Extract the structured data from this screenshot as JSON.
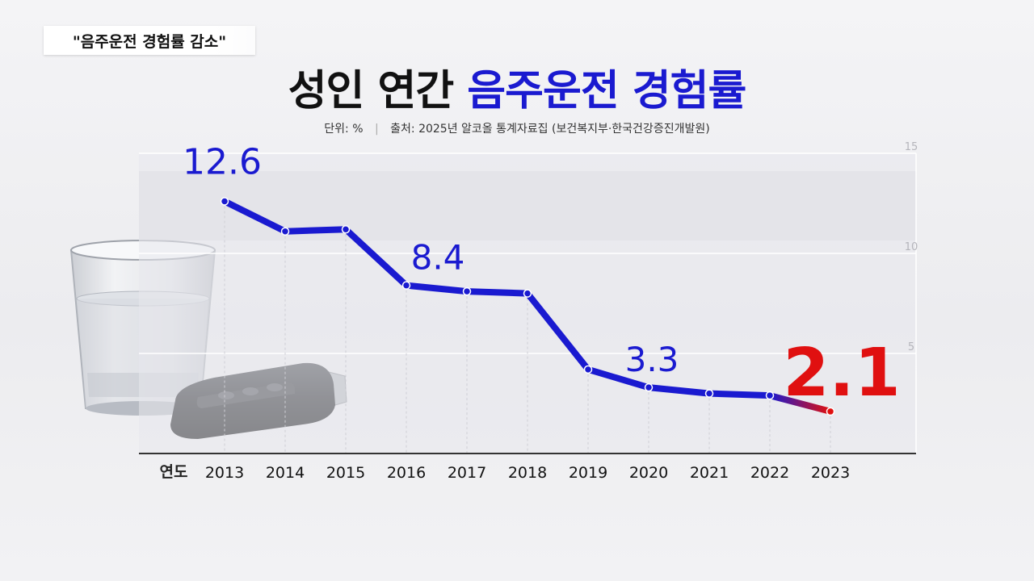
{
  "tag_label": "\"음주운전 경험률 감소\"",
  "title": {
    "part1": "성인 연간",
    "part2": "음주운전 경험률"
  },
  "subtitle": {
    "unit": "단위:  %",
    "source": "출처: 2025년 알코올 통계자료집 (보건복지부·한국건강증진개발원)"
  },
  "colors": {
    "line": "#1a1ad0",
    "highlight": "#e01010",
    "accent": "#1a1ad0"
  },
  "icons": [
    "glass-icon",
    "car-key-icon"
  ],
  "chart_data": {
    "type": "line",
    "xlabel": "연도",
    "ylabel": "",
    "ylim": [
      0,
      15
    ],
    "yticks": [
      5,
      10,
      15
    ],
    "grid": true,
    "categories": [
      "2013",
      "2014",
      "2015",
      "2016",
      "2017",
      "2018",
      "2019",
      "2020",
      "2021",
      "2022",
      "2023"
    ],
    "series": [
      {
        "values": [
          12.6,
          11.1,
          11.2,
          8.4,
          8.1,
          8.0,
          4.2,
          3.3,
          3.0,
          2.9,
          2.1
        ]
      }
    ],
    "data_labels": [
      {
        "index": 0,
        "text": "12.6"
      },
      {
        "index": 3,
        "text": "8.4"
      },
      {
        "index": 7,
        "text": "3.3"
      },
      {
        "index": 10,
        "text": "2.1",
        "highlight": true
      }
    ]
  }
}
